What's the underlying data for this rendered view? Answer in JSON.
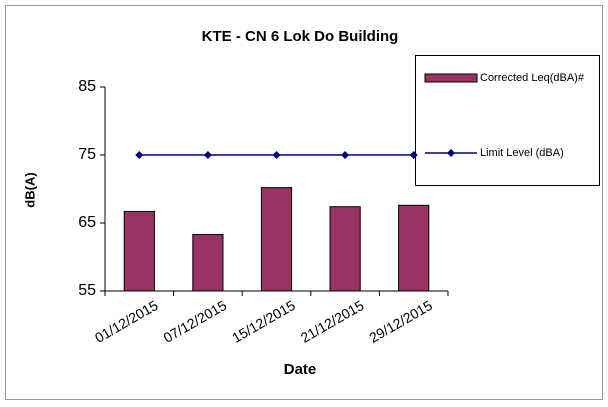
{
  "chart_data": {
    "type": "bar",
    "title": "KTE - CN 6 Lok Do Building",
    "x_label": "Date",
    "y_label": "dB(A)",
    "categories": [
      "01/12/2015",
      "07/12/2015",
      "15/12/2015",
      "21/12/2015",
      "29/12/2015"
    ],
    "series": [
      {
        "name": "Corrected Leq(dBA)#",
        "type": "bar",
        "color": "#993366",
        "values": [
          66.7,
          63.3,
          70.2,
          67.4,
          67.6
        ]
      },
      {
        "name": "Limit Level (dBA)",
        "type": "line",
        "color": "#000080",
        "values": [
          75,
          75,
          75,
          75,
          75
        ]
      }
    ],
    "ylim": [
      55,
      85
    ],
    "yticks": [
      55,
      65,
      75,
      85
    ],
    "grid": false
  }
}
